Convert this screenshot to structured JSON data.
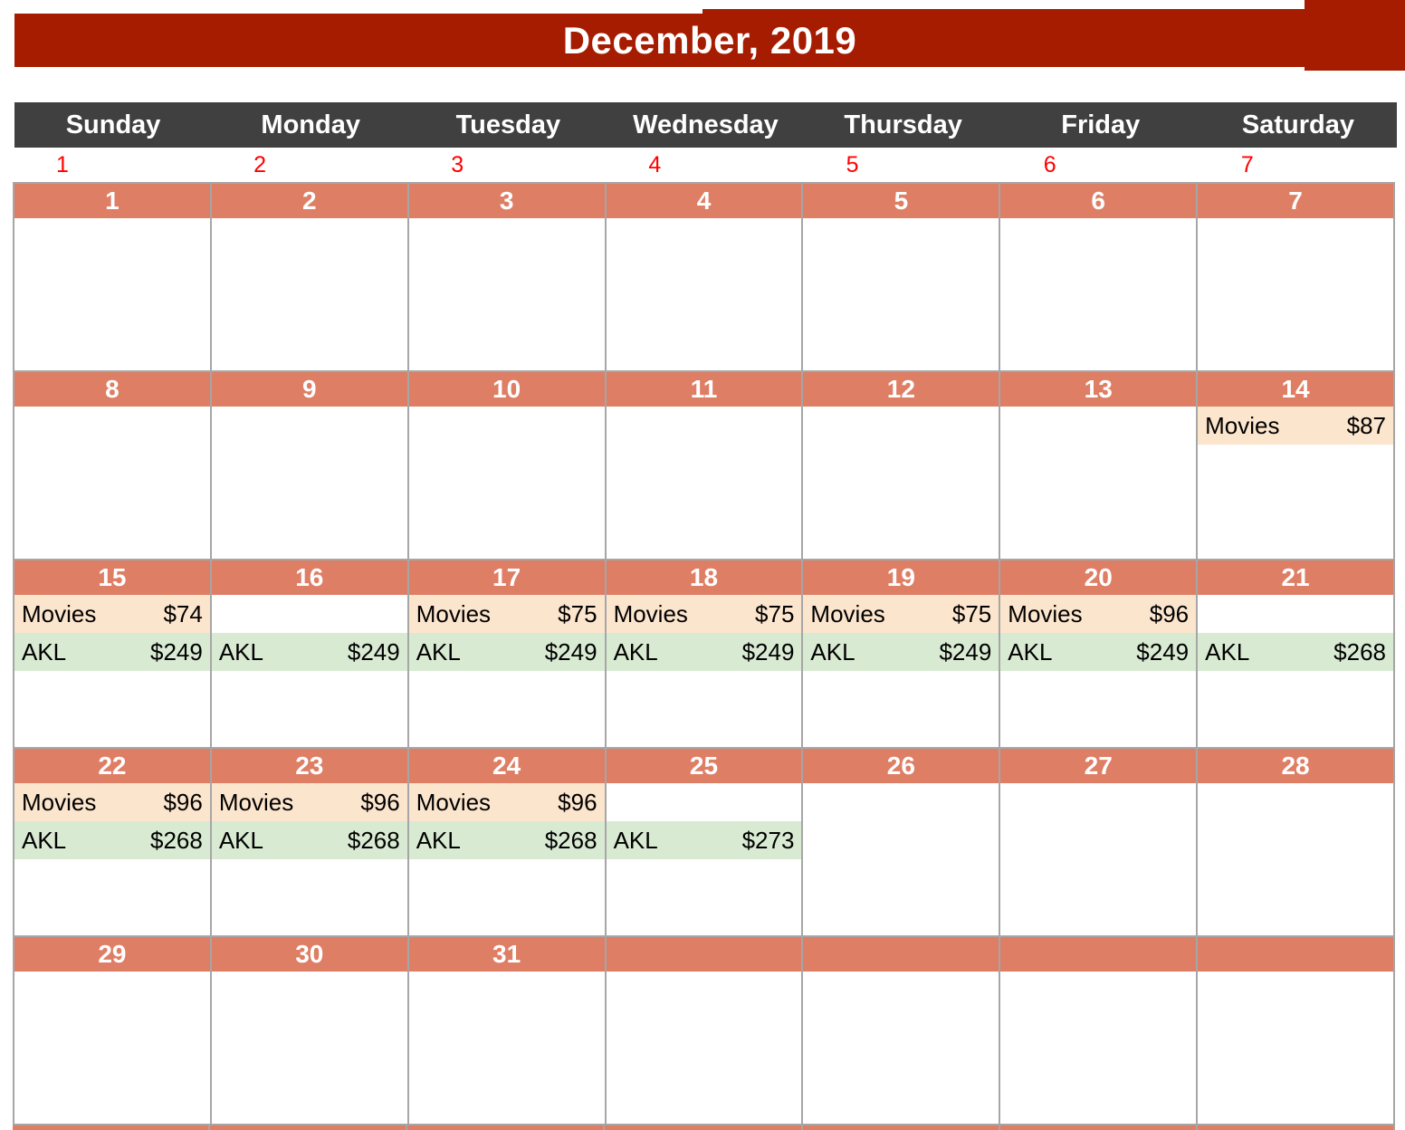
{
  "title": "December, 2019",
  "weekdays": [
    "Sunday",
    "Monday",
    "Tuesday",
    "Wednesday",
    "Thursday",
    "Friday",
    "Saturday"
  ],
  "column_numbers": [
    "1",
    "2",
    "3",
    "4",
    "5",
    "6",
    "7"
  ],
  "colors": {
    "title_band": "#A61C00",
    "weekday_band": "#404040",
    "week_bar": "#DE7E65",
    "movies_bg": "#FCE5CD",
    "akl_bg": "#D9EAD3",
    "grid_line": "#A6A6A6",
    "column_number_text": "#FF0000",
    "bar_text": "#FFFFFF"
  },
  "weeks": [
    {
      "days": [
        {
          "num": "1",
          "entries": []
        },
        {
          "num": "2",
          "entries": []
        },
        {
          "num": "3",
          "entries": []
        },
        {
          "num": "4",
          "entries": []
        },
        {
          "num": "5",
          "entries": []
        },
        {
          "num": "6",
          "entries": []
        },
        {
          "num": "7",
          "entries": []
        }
      ]
    },
    {
      "days": [
        {
          "num": "8",
          "entries": []
        },
        {
          "num": "9",
          "entries": []
        },
        {
          "num": "10",
          "entries": []
        },
        {
          "num": "11",
          "entries": []
        },
        {
          "num": "12",
          "entries": []
        },
        {
          "num": "13",
          "entries": []
        },
        {
          "num": "14",
          "entries": [
            {
              "kind": "movies",
              "label": "Movies",
              "price": "$87"
            }
          ]
        }
      ]
    },
    {
      "days": [
        {
          "num": "15",
          "entries": [
            {
              "kind": "movies",
              "label": "Movies",
              "price": "$74"
            },
            {
              "kind": "akl",
              "label": "AKL",
              "price": "$249"
            }
          ]
        },
        {
          "num": "16",
          "entries": [
            {
              "kind": "akl",
              "label": "AKL",
              "price": "$249"
            }
          ]
        },
        {
          "num": "17",
          "entries": [
            {
              "kind": "movies",
              "label": "Movies",
              "price": "$75"
            },
            {
              "kind": "akl",
              "label": "AKL",
              "price": "$249"
            }
          ]
        },
        {
          "num": "18",
          "entries": [
            {
              "kind": "movies",
              "label": "Movies",
              "price": "$75"
            },
            {
              "kind": "akl",
              "label": "AKL",
              "price": "$249"
            }
          ]
        },
        {
          "num": "19",
          "entries": [
            {
              "kind": "movies",
              "label": "Movies",
              "price": "$75"
            },
            {
              "kind": "akl",
              "label": "AKL",
              "price": "$249"
            }
          ]
        },
        {
          "num": "20",
          "entries": [
            {
              "kind": "movies",
              "label": "Movies",
              "price": "$96"
            },
            {
              "kind": "akl",
              "label": "AKL",
              "price": "$249"
            }
          ]
        },
        {
          "num": "21",
          "entries": [
            {
              "kind": "akl",
              "label": "AKL",
              "price": "$268"
            }
          ]
        }
      ]
    },
    {
      "days": [
        {
          "num": "22",
          "entries": [
            {
              "kind": "movies",
              "label": "Movies",
              "price": "$96"
            },
            {
              "kind": "akl",
              "label": "AKL",
              "price": "$268"
            }
          ]
        },
        {
          "num": "23",
          "entries": [
            {
              "kind": "movies",
              "label": "Movies",
              "price": "$96"
            },
            {
              "kind": "akl",
              "label": "AKL",
              "price": "$268"
            }
          ]
        },
        {
          "num": "24",
          "entries": [
            {
              "kind": "movies",
              "label": "Movies",
              "price": "$96"
            },
            {
              "kind": "akl",
              "label": "AKL",
              "price": "$268"
            }
          ]
        },
        {
          "num": "25",
          "entries": [
            {
              "kind": "akl",
              "label": "AKL",
              "price": "$273"
            }
          ]
        },
        {
          "num": "26",
          "entries": []
        },
        {
          "num": "27",
          "entries": []
        },
        {
          "num": "28",
          "entries": []
        }
      ]
    },
    {
      "days": [
        {
          "num": "29",
          "entries": []
        },
        {
          "num": "30",
          "entries": []
        },
        {
          "num": "31",
          "entries": []
        },
        {
          "num": "",
          "entries": []
        },
        {
          "num": "",
          "entries": []
        },
        {
          "num": "",
          "entries": []
        },
        {
          "num": "",
          "entries": []
        }
      ]
    }
  ]
}
